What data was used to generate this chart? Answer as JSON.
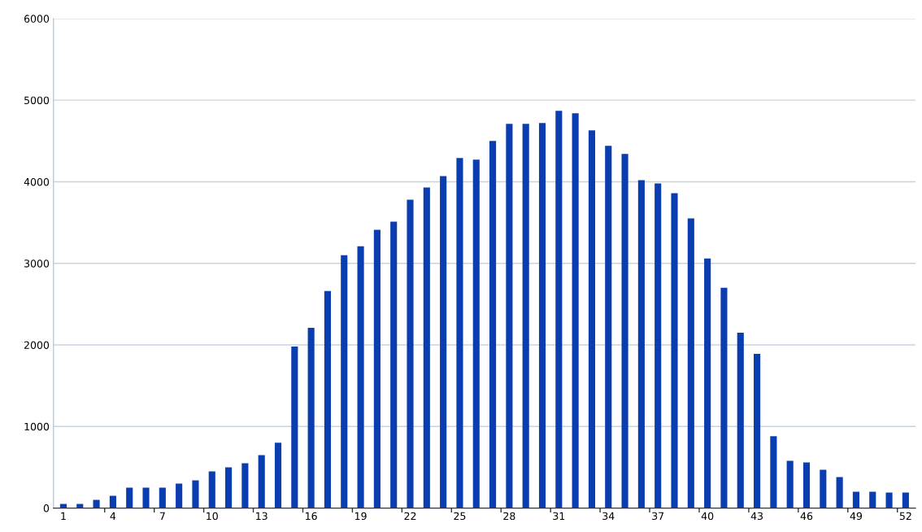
{
  "chart_data": {
    "type": "bar",
    "categories": [
      "1",
      null,
      null,
      "4",
      null,
      null,
      "7",
      null,
      null,
      "10",
      null,
      null,
      "13",
      null,
      null,
      "16",
      null,
      null,
      "19",
      null,
      null,
      "22",
      null,
      null,
      "25",
      null,
      null,
      "28",
      null,
      null,
      "31",
      null,
      null,
      "34",
      null,
      null,
      "37",
      null,
      null,
      "40",
      null,
      null,
      "43",
      null,
      null,
      "46",
      null,
      null,
      "49",
      null,
      null,
      "52"
    ],
    "values": [
      50,
      50,
      100,
      150,
      250,
      250,
      250,
      300,
      340,
      450,
      500,
      550,
      650,
      800,
      1980,
      2210,
      2660,
      3100,
      3210,
      3410,
      3510,
      3780,
      3930,
      4070,
      4290,
      4270,
      4500,
      4710,
      4710,
      4720,
      4870,
      4840,
      4630,
      4440,
      4340,
      4020,
      3980,
      3860,
      3550,
      3060,
      2700,
      2150,
      1890,
      880,
      580,
      560,
      470,
      380,
      200,
      200,
      190,
      190
    ],
    "color": "#0a3db0",
    "ylim": [
      0,
      6000
    ],
    "yticks": [
      0,
      1000,
      2000,
      3000,
      4000,
      5000,
      6000
    ],
    "grid": "y",
    "legend": false
  }
}
